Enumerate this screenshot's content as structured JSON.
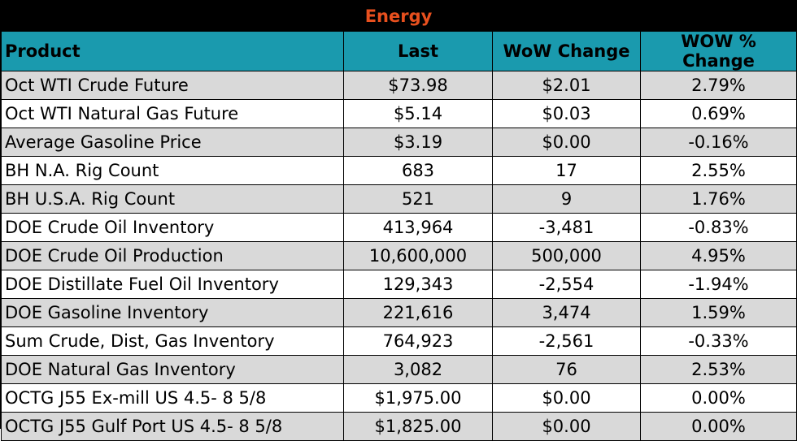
{
  "title": "Energy",
  "colors": {
    "title_text": "#e8501e",
    "header_bg": "#1a9aae",
    "band_bg": "#d9d9d9"
  },
  "headers": [
    "Product",
    "Last",
    "WoW Change",
    "WOW % Change"
  ],
  "rows": [
    [
      "Oct WTI Crude Future",
      "$73.98",
      "$2.01",
      "2.79%"
    ],
    [
      "Oct WTI Natural Gas Future",
      "$5.14",
      "$0.03",
      "0.69%"
    ],
    [
      "Average Gasoline Price",
      "$3.19",
      "$0.00",
      "-0.16%"
    ],
    [
      "BH N.A. Rig Count",
      "683",
      "17",
      "2.55%"
    ],
    [
      "BH U.S.A. Rig Count",
      "521",
      "9",
      "1.76%"
    ],
    [
      "DOE Crude Oil Inventory",
      "413,964",
      "-3,481",
      "-0.83%"
    ],
    [
      "DOE Crude Oil Production",
      "10,600,000",
      "500,000",
      "4.95%"
    ],
    [
      "DOE Distillate Fuel Oil Inventory",
      "129,343",
      "-2,554",
      "-1.94%"
    ],
    [
      "DOE Gasoline Inventory",
      "221,616",
      "3,474",
      "1.59%"
    ],
    [
      "Sum Crude, Dist, Gas Inventory",
      "764,923",
      "-2,561",
      "-0.33%"
    ],
    [
      "DOE Natural Gas Inventory",
      "3,082",
      "76",
      "2.53%"
    ],
    [
      "OCTG J55 Ex-mill US 4.5- 8 5/8",
      "$1,975.00",
      "$0.00",
      "0.00%"
    ],
    [
      "OCTG J55 Gulf Port US 4.5- 8 5/8",
      "$1,825.00",
      "$0.00",
      "0.00%"
    ]
  ]
}
